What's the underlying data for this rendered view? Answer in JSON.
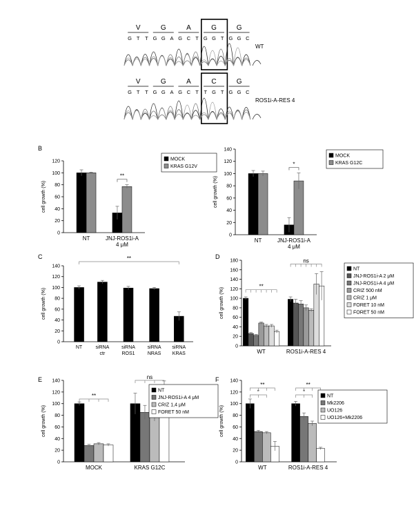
{
  "sequencing": {
    "wt": {
      "label": "WT",
      "aa": [
        "V",
        "G",
        "A",
        "G",
        "G"
      ],
      "nt": [
        "G",
        "T",
        "T",
        "G",
        "G",
        "A",
        "G",
        "C",
        "T",
        "G",
        "G",
        "T",
        "G",
        "G",
        "C"
      ]
    },
    "mut": {
      "label": "ROS1i-A-RES 4",
      "aa": [
        "V",
        "G",
        "A",
        "C",
        "G"
      ],
      "nt": [
        "G",
        "T",
        "T",
        "G",
        "G",
        "A",
        "G",
        "C",
        "T",
        "T",
        "G",
        "T",
        "G",
        "G",
        "C"
      ]
    }
  },
  "chart_data": [
    {
      "panel": "B",
      "type": "bar",
      "ylabel": "cell growth (%)",
      "ylim": [
        0,
        120
      ],
      "yticks": [
        0,
        20,
        40,
        60,
        80,
        100,
        120
      ],
      "groups": [
        "NT",
        "JNJ-ROS1i-A\n4 μM"
      ],
      "series": [
        {
          "name": "MOCK",
          "color": "#000000",
          "values": [
            100,
            33
          ],
          "errors": [
            5,
            11
          ]
        },
        {
          "name": "KRAS G12V",
          "color": "#8c8c8c",
          "values": [
            100,
            77
          ],
          "errors": [
            1,
            3
          ]
        }
      ],
      "annotations": [
        {
          "text": "**",
          "group": 1
        }
      ]
    },
    {
      "panel": "B2",
      "type": "bar",
      "ylabel": "cell growth (%)",
      "ylim": [
        0,
        140
      ],
      "yticks": [
        0,
        20,
        40,
        60,
        80,
        100,
        120,
        140
      ],
      "groups": [
        "NT",
        "JNJ-ROS1i-A\n4 μM"
      ],
      "series": [
        {
          "name": "MOCK",
          "color": "#000000",
          "values": [
            100,
            16
          ],
          "errors": [
            5,
            12
          ]
        },
        {
          "name": "KRAS G12C",
          "color": "#8c8c8c",
          "values": [
            100,
            88
          ],
          "errors": [
            4,
            13
          ]
        }
      ],
      "annotations": [
        {
          "text": "*",
          "group": 1
        }
      ]
    },
    {
      "panel": "C",
      "type": "bar",
      "ylabel": "cell growth (%)",
      "ylim": [
        0,
        140
      ],
      "yticks": [
        0,
        20,
        40,
        60,
        80,
        100,
        120,
        140
      ],
      "categories": [
        "NT",
        "siRNA\nctr",
        "siRNA\nROS1",
        "siRNA\nNRAS",
        "siRNA\nKRAS"
      ],
      "values": [
        100,
        110,
        99,
        98,
        47
      ],
      "errors": [
        3,
        3,
        3,
        2,
        8
      ],
      "color": "#000000",
      "annotations": [
        {
          "text": "**"
        }
      ]
    },
    {
      "panel": "D",
      "type": "bar",
      "ylabel": "cell growth (%)",
      "ylim": [
        0,
        180
      ],
      "yticks": [
        0,
        20,
        40,
        60,
        80,
        100,
        120,
        140,
        160,
        180
      ],
      "groups": [
        "WT",
        "ROS1i-A-RES 4"
      ],
      "series": [
        {
          "name": "NT",
          "color": "#000000",
          "values": [
            100,
            98
          ],
          "errors": [
            3,
            5
          ]
        },
        {
          "name": "JNJ-ROS1i-A 2 μM",
          "color": "#555555",
          "values": [
            26,
            90
          ],
          "errors": [
            2,
            8
          ]
        },
        {
          "name": "JNJ-ROS1i-A 4 μM",
          "color": "#777777",
          "values": [
            22,
            88
          ],
          "errors": [
            2,
            7
          ]
        },
        {
          "name": "CRIZ 500 nM",
          "color": "#9a9a9a",
          "values": [
            48,
            80
          ],
          "errors": [
            2,
            6
          ]
        },
        {
          "name": "CRIZ 1 μM",
          "color": "#bbbbbb",
          "values": [
            42,
            75
          ],
          "errors": [
            3,
            3
          ]
        },
        {
          "name": "FORET 10 nM",
          "color": "#dddddd",
          "values": [
            42,
            130
          ],
          "errors": [
            3,
            22
          ]
        },
        {
          "name": "FORET 50 nM",
          "color": "#ffffff",
          "values": [
            30,
            126
          ],
          "errors": [
            3,
            30
          ]
        }
      ],
      "annotations": [
        {
          "text": "**",
          "group": 0
        },
        {
          "text": "ns",
          "group": 1
        }
      ]
    },
    {
      "panel": "E",
      "type": "bar",
      "ylabel": "cell growth (%)",
      "ylim": [
        0,
        140
      ],
      "yticks": [
        0,
        20,
        40,
        60,
        80,
        100,
        120,
        140
      ],
      "groups": [
        "MOCK",
        "KRAS G12C"
      ],
      "series": [
        {
          "name": "NT",
          "color": "#000000",
          "values": [
            100,
            100
          ],
          "errors": [
            3,
            18
          ]
        },
        {
          "name": "JNJ-ROS1i-A 4 μM",
          "color": "#777777",
          "values": [
            28,
            85
          ],
          "errors": [
            2,
            12
          ]
        },
        {
          "name": "CRIZ 1,4 μM",
          "color": "#bbbbbb",
          "values": [
            31,
            84
          ],
          "errors": [
            2,
            14
          ]
        },
        {
          "name": "FORET 50 nM",
          "color": "#ffffff",
          "values": [
            29,
            124
          ],
          "errors": [
            2,
            15
          ]
        }
      ],
      "annotations": [
        {
          "text": "**",
          "group": 0
        },
        {
          "text": "ns",
          "group": 1
        }
      ]
    },
    {
      "panel": "F",
      "type": "bar",
      "ylabel": "cell growth (%)",
      "ylim": [
        0,
        140
      ],
      "yticks": [
        0,
        20,
        40,
        60,
        80,
        100,
        120,
        140
      ],
      "groups": [
        "WT",
        "ROS1i-A-RES 4"
      ],
      "series": [
        {
          "name": "NT",
          "color": "#000000",
          "values": [
            100,
            100
          ],
          "errors": [
            8,
            4
          ]
        },
        {
          "name": "Mk2206",
          "color": "#777777",
          "values": [
            52,
            78
          ],
          "errors": [
            2,
            6
          ]
        },
        {
          "name": "UO126",
          "color": "#bbbbbb",
          "values": [
            50,
            66
          ],
          "errors": [
            2,
            4
          ]
        },
        {
          "name": "UO126+Mk2206",
          "color": "#ffffff",
          "values": [
            27,
            23
          ],
          "errors": [
            8,
            2
          ]
        }
      ],
      "annotations": [
        {
          "text": "*",
          "group": 0
        },
        {
          "text": "**",
          "group": 0
        },
        {
          "text": "*",
          "group": 1
        },
        {
          "text": "**",
          "group": 1
        }
      ]
    }
  ]
}
